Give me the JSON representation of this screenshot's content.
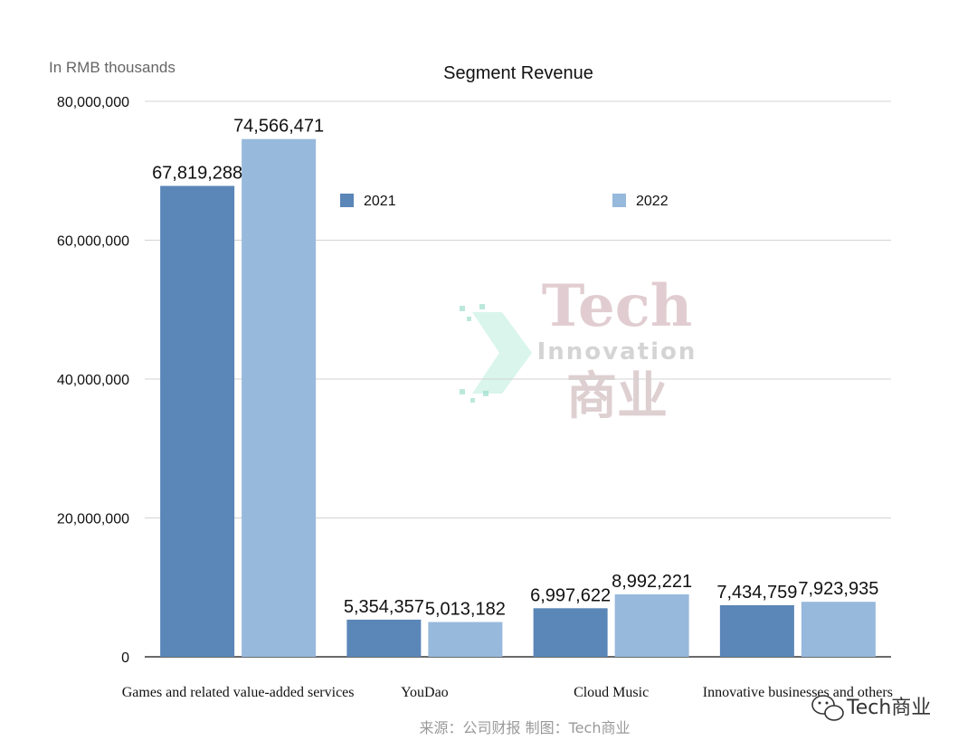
{
  "unit_label": "In RMB thousands",
  "source_caption": "来源：公司财报 制图：Tech商业",
  "watermark": {
    "title": "Tech",
    "subtitle": "Innovation",
    "cn": "商业"
  },
  "brand_badge": {
    "icon": "wechat-icon",
    "text": "Tech商业"
  },
  "colors": {
    "series_2021": "#5b86b8",
    "series_2022": "#97b9dc",
    "grid": "#d3d3d3"
  },
  "chart_data": {
    "type": "bar",
    "title": "Segment Revenue",
    "xlabel": "",
    "ylabel": "",
    "categories": [
      "Games and related value-added services",
      "YouDao",
      "Cloud Music",
      "Innovative businesses and others"
    ],
    "series": [
      {
        "name": "2021",
        "values": [
          67819288,
          5354357,
          6997622,
          7434759
        ],
        "labels": [
          "67,819,288",
          "5,354,357",
          "6,997,622",
          "7,434,759"
        ]
      },
      {
        "name": "2022",
        "values": [
          74566471,
          5013182,
          8992221,
          7923935
        ],
        "labels": [
          "74,566,471",
          "5,013,182",
          "8,992,221",
          "7,923,935"
        ]
      }
    ],
    "ylim": [
      0,
      80000000
    ],
    "yticks": [
      0,
      20000000,
      40000000,
      60000000,
      80000000
    ],
    "ytick_labels": [
      "0",
      "20,000,000",
      "40,000,000",
      "60,000,000",
      "80,000,000"
    ],
    "grid": true,
    "legend_position": "top"
  }
}
